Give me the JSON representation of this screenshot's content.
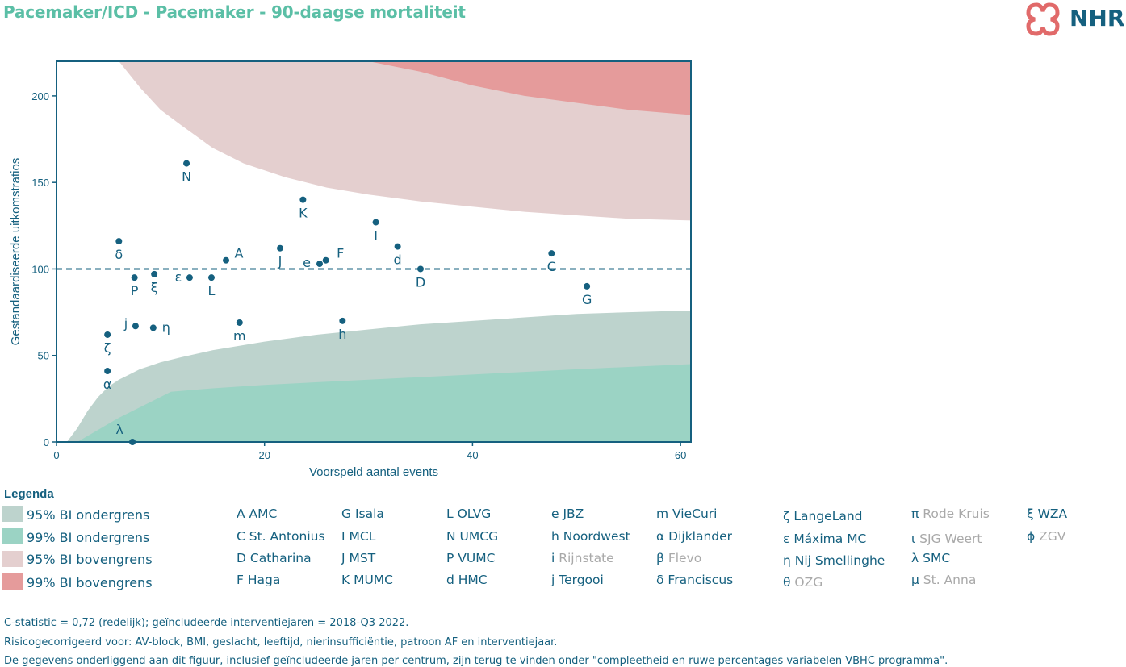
{
  "title": "Pacemaker/ICD - Pacemaker - 90-daagse mortaliteit",
  "logo_text": "NHR",
  "colors": {
    "primary": "#15607f",
    "title": "#5bbfa6",
    "ci95_lower": "#bdd3cd",
    "ci99_lower": "#9bd3c4",
    "ci95_upper": "#e4cfcf",
    "ci99_upper": "#e59b9b",
    "inactive": "#a9a9a9"
  },
  "chart_data": {
    "type": "scatter",
    "title": "",
    "xlabel": "Voorspeld aantal events",
    "ylabel": "Gestandaardiseerde uitkomstratios",
    "xlim": [
      0,
      61
    ],
    "ylim": [
      0,
      220
    ],
    "xticks": [
      0,
      20,
      40,
      60
    ],
    "yticks": [
      0,
      50,
      100,
      150,
      200
    ],
    "reference_line": 100,
    "bands": {
      "ci95_lower": [
        [
          1,
          0
        ],
        [
          2,
          8
        ],
        [
          3,
          18
        ],
        [
          4,
          26
        ],
        [
          5,
          32
        ],
        [
          6,
          36
        ],
        [
          7,
          39
        ],
        [
          8,
          42
        ],
        [
          9,
          44
        ],
        [
          10,
          46
        ],
        [
          12,
          49
        ],
        [
          15,
          53
        ],
        [
          20,
          58
        ],
        [
          25,
          62
        ],
        [
          30,
          65
        ],
        [
          35,
          68
        ],
        [
          40,
          70
        ],
        [
          45,
          72
        ],
        [
          50,
          74
        ],
        [
          55,
          75
        ],
        [
          61,
          76
        ]
      ],
      "ci99_lower": [
        [
          2,
          0
        ],
        [
          4,
          7
        ],
        [
          6,
          14
        ],
        [
          8,
          20
        ],
        [
          10,
          26
        ],
        [
          11,
          29
        ],
        [
          15,
          31
        ],
        [
          20,
          33
        ],
        [
          30,
          36
        ],
        [
          40,
          39
        ],
        [
          50,
          42
        ],
        [
          61,
          45
        ]
      ],
      "ci95_upper": [
        [
          6,
          220
        ],
        [
          8,
          205
        ],
        [
          10,
          192
        ],
        [
          12,
          183
        ],
        [
          15,
          170
        ],
        [
          18,
          161
        ],
        [
          22,
          153
        ],
        [
          26,
          147
        ],
        [
          30,
          143
        ],
        [
          35,
          139
        ],
        [
          40,
          136
        ],
        [
          45,
          133
        ],
        [
          50,
          131
        ],
        [
          55,
          129
        ],
        [
          61,
          128
        ]
      ],
      "ci99_upper": [
        [
          30,
          220
        ],
        [
          35,
          214
        ],
        [
          40,
          206
        ],
        [
          45,
          200
        ],
        [
          50,
          196
        ],
        [
          55,
          192
        ],
        [
          61,
          189
        ]
      ]
    },
    "points": [
      {
        "label": "N",
        "x": 12.5,
        "y": 161
      },
      {
        "label": "K",
        "x": 23.7,
        "y": 140
      },
      {
        "label": "I",
        "x": 30.7,
        "y": 127
      },
      {
        "label": "δ",
        "x": 6.0,
        "y": 116
      },
      {
        "label": "J",
        "x": 21.5,
        "y": 112
      },
      {
        "label": "d",
        "x": 32.8,
        "y": 113
      },
      {
        "label": "C",
        "x": 47.6,
        "y": 109
      },
      {
        "label": "A",
        "x": 16.3,
        "y": 105
      },
      {
        "label": "F",
        "x": 25.9,
        "y": 105
      },
      {
        "label": "e",
        "x": 25.3,
        "y": 103
      },
      {
        "label": "D",
        "x": 35.0,
        "y": 100
      },
      {
        "label": "P",
        "x": 7.5,
        "y": 95
      },
      {
        "label": "ξ",
        "x": 9.4,
        "y": 97
      },
      {
        "label": "ε",
        "x": 12.8,
        "y": 95
      },
      {
        "label": "L",
        "x": 14.9,
        "y": 95
      },
      {
        "label": "G",
        "x": 51.0,
        "y": 90
      },
      {
        "label": "h",
        "x": 27.5,
        "y": 70
      },
      {
        "label": "m",
        "x": 17.6,
        "y": 69
      },
      {
        "label": "j",
        "x": 7.6,
        "y": 67
      },
      {
        "label": "η",
        "x": 9.3,
        "y": 66
      },
      {
        "label": "ζ",
        "x": 4.9,
        "y": 62
      },
      {
        "label": "α",
        "x": 4.9,
        "y": 41
      },
      {
        "label": "λ",
        "x": 7.3,
        "y": 0
      }
    ]
  },
  "legend": {
    "title": "Legenda",
    "swatches": [
      {
        "label": "95% BI ondergrens",
        "color": "#bdd3cd"
      },
      {
        "label": "99% BI ondergrens",
        "color": "#9bd3c4"
      },
      {
        "label": "95% BI bovengrens",
        "color": "#e4cfcf"
      },
      {
        "label": "99% BI bovengrens",
        "color": "#e59b9b"
      }
    ],
    "hospitals": [
      [
        {
          "code": "A",
          "name": "AMC",
          "active": true
        },
        {
          "code": "C",
          "name": "St. Antonius",
          "active": true
        },
        {
          "code": "D",
          "name": "Catharina",
          "active": true
        },
        {
          "code": "F",
          "name": "Haga",
          "active": true
        }
      ],
      [
        {
          "code": "G",
          "name": "Isala",
          "active": true
        },
        {
          "code": "I",
          "name": "MCL",
          "active": true
        },
        {
          "code": "J",
          "name": "MST",
          "active": true
        },
        {
          "code": "K",
          "name": "MUMC",
          "active": true
        }
      ],
      [
        {
          "code": "L",
          "name": "OLVG",
          "active": true
        },
        {
          "code": "N",
          "name": "UMCG",
          "active": true
        },
        {
          "code": "P",
          "name": "VUMC",
          "active": true
        },
        {
          "code": "d",
          "name": "HMC",
          "active": true
        }
      ],
      [
        {
          "code": "e",
          "name": "JBZ",
          "active": true
        },
        {
          "code": "h",
          "name": "Noordwest",
          "active": true
        },
        {
          "code": "i",
          "name": "Rijnstate",
          "active": false
        },
        {
          "code": "j",
          "name": "Tergooi",
          "active": true
        }
      ],
      [
        {
          "code": "m",
          "name": "VieCuri",
          "active": true
        },
        {
          "code": "α",
          "name": "Dijklander",
          "active": true
        },
        {
          "code": "β",
          "name": "Flevo",
          "active": false
        },
        {
          "code": "δ",
          "name": "Franciscus",
          "active": true
        }
      ],
      [
        {
          "code": "ζ",
          "name": "LangeLand",
          "active": true
        },
        {
          "code": "ε",
          "name": "Máxima MC",
          "active": true
        },
        {
          "code": "η",
          "name": "Nij Smellinghe",
          "active": true
        },
        {
          "code": "θ",
          "name": "OZG",
          "active": false
        }
      ],
      [
        {
          "code": "π",
          "name": "Rode Kruis",
          "active": false
        },
        {
          "code": "ι",
          "name": "SJG Weert",
          "active": false
        },
        {
          "code": "λ",
          "name": "SMC",
          "active": true
        },
        {
          "code": "μ",
          "name": "St. Anna",
          "active": false
        }
      ],
      [
        {
          "code": "ξ",
          "name": "WZA",
          "active": true
        },
        {
          "code": "ϕ",
          "name": "ZGV",
          "active": false
        }
      ]
    ]
  },
  "footer": [
    "C-statistic =  0,72 (redelijk); geïncludeerde interventiejaren = 2018-Q3 2022.",
    "Risicogecorrigeerd voor: AV-block, BMI, geslacht, leeftijd, nierinsufficiëntie, patroon AF en interventiejaar.",
    "De gegevens onderliggend aan dit figuur, inclusief geïncludeerde jaren per centrum, zijn terug te vinden onder \"compleetheid en ruwe percentages variabelen VBHC programma\"."
  ]
}
